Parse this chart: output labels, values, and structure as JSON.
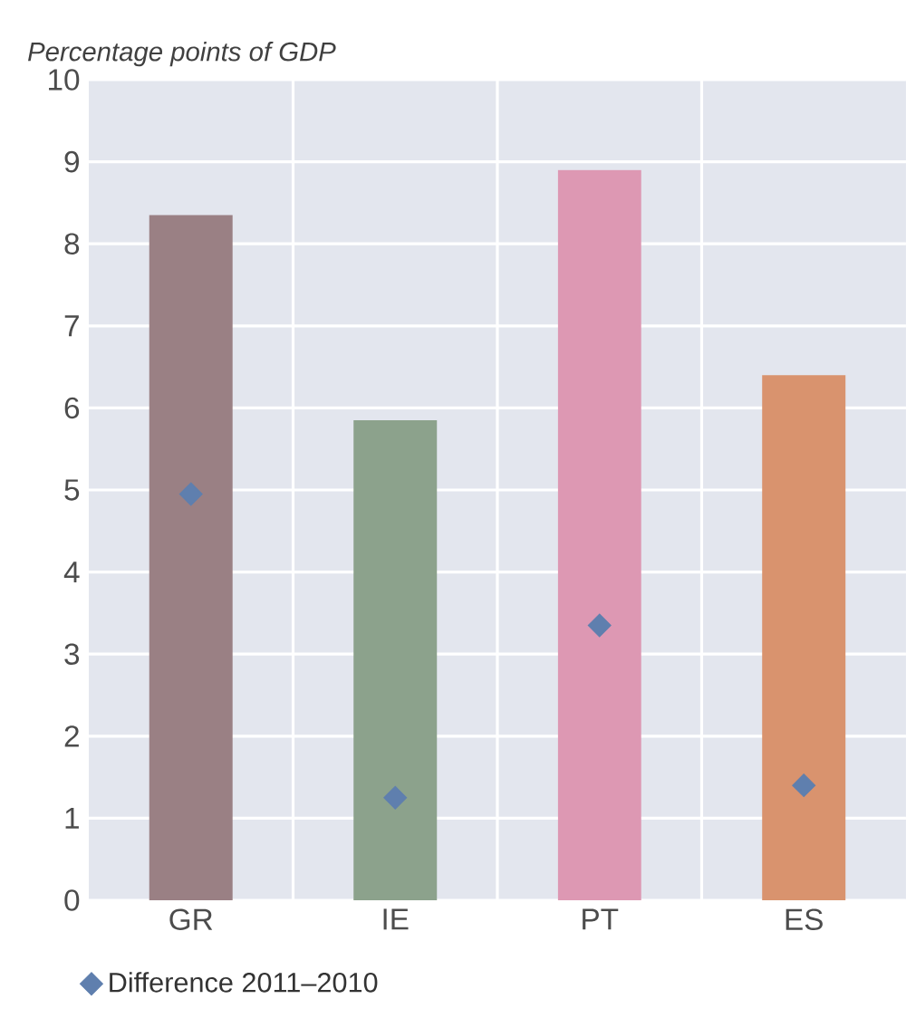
{
  "chart_data": {
    "type": "bar",
    "ylabel": "Percentage points of GDP",
    "categories": [
      "GR",
      "IE",
      "PT",
      "ES"
    ],
    "series": [
      {
        "colors": [
          "#9a8084",
          "#8ca28c",
          "#dd98b3",
          "#d9936e"
        ],
        "values": [
          8.35,
          5.85,
          8.9,
          6.4
        ]
      },
      {
        "type": "scatter",
        "name": "Difference 2011–2010",
        "color": "#5f7fae",
        "values": [
          4.95,
          1.25,
          3.35,
          1.4
        ]
      }
    ],
    "ylim": [
      0,
      10
    ],
    "yticks": [
      0,
      1,
      2,
      3,
      4,
      5,
      6,
      7,
      8,
      9,
      10
    ],
    "grid": true,
    "legend": "bottom",
    "marker": "diamond"
  }
}
